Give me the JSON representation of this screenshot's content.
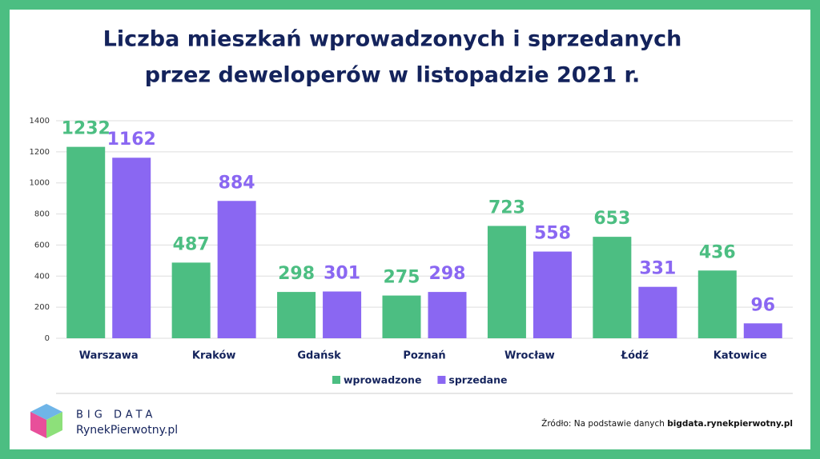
{
  "chart_data": {
    "type": "bar",
    "title": [
      "Liczba mieszkań wprowadzonych i sprzedanych",
      "przez deweloperów w listopadzie 2021 r."
    ],
    "categories": [
      "Warszawa",
      "Kraków",
      "Gdańsk",
      "Poznań",
      "Wrocław",
      "Łódź",
      "Katowice"
    ],
    "series": [
      {
        "name": "wprowadzone",
        "color": "#4cbe82",
        "values": [
          1232,
          487,
          298,
          275,
          723,
          653,
          436
        ]
      },
      {
        "name": "sprzedane",
        "color": "#8a67f2",
        "values": [
          1162,
          884,
          301,
          298,
          558,
          331,
          96
        ]
      }
    ],
    "ylim": [
      0,
      1400
    ],
    "yticks": [
      0,
      200,
      400,
      600,
      800,
      1000,
      1200,
      1400
    ],
    "grid": true,
    "legend": "bottom"
  },
  "logo": {
    "top": "BIG DATA",
    "bottom": "RynekPierwotny.pl"
  },
  "source": {
    "text": "Źródło: Na podstawie danych",
    "link": "bigdata.rynekpierwotny.pl"
  }
}
